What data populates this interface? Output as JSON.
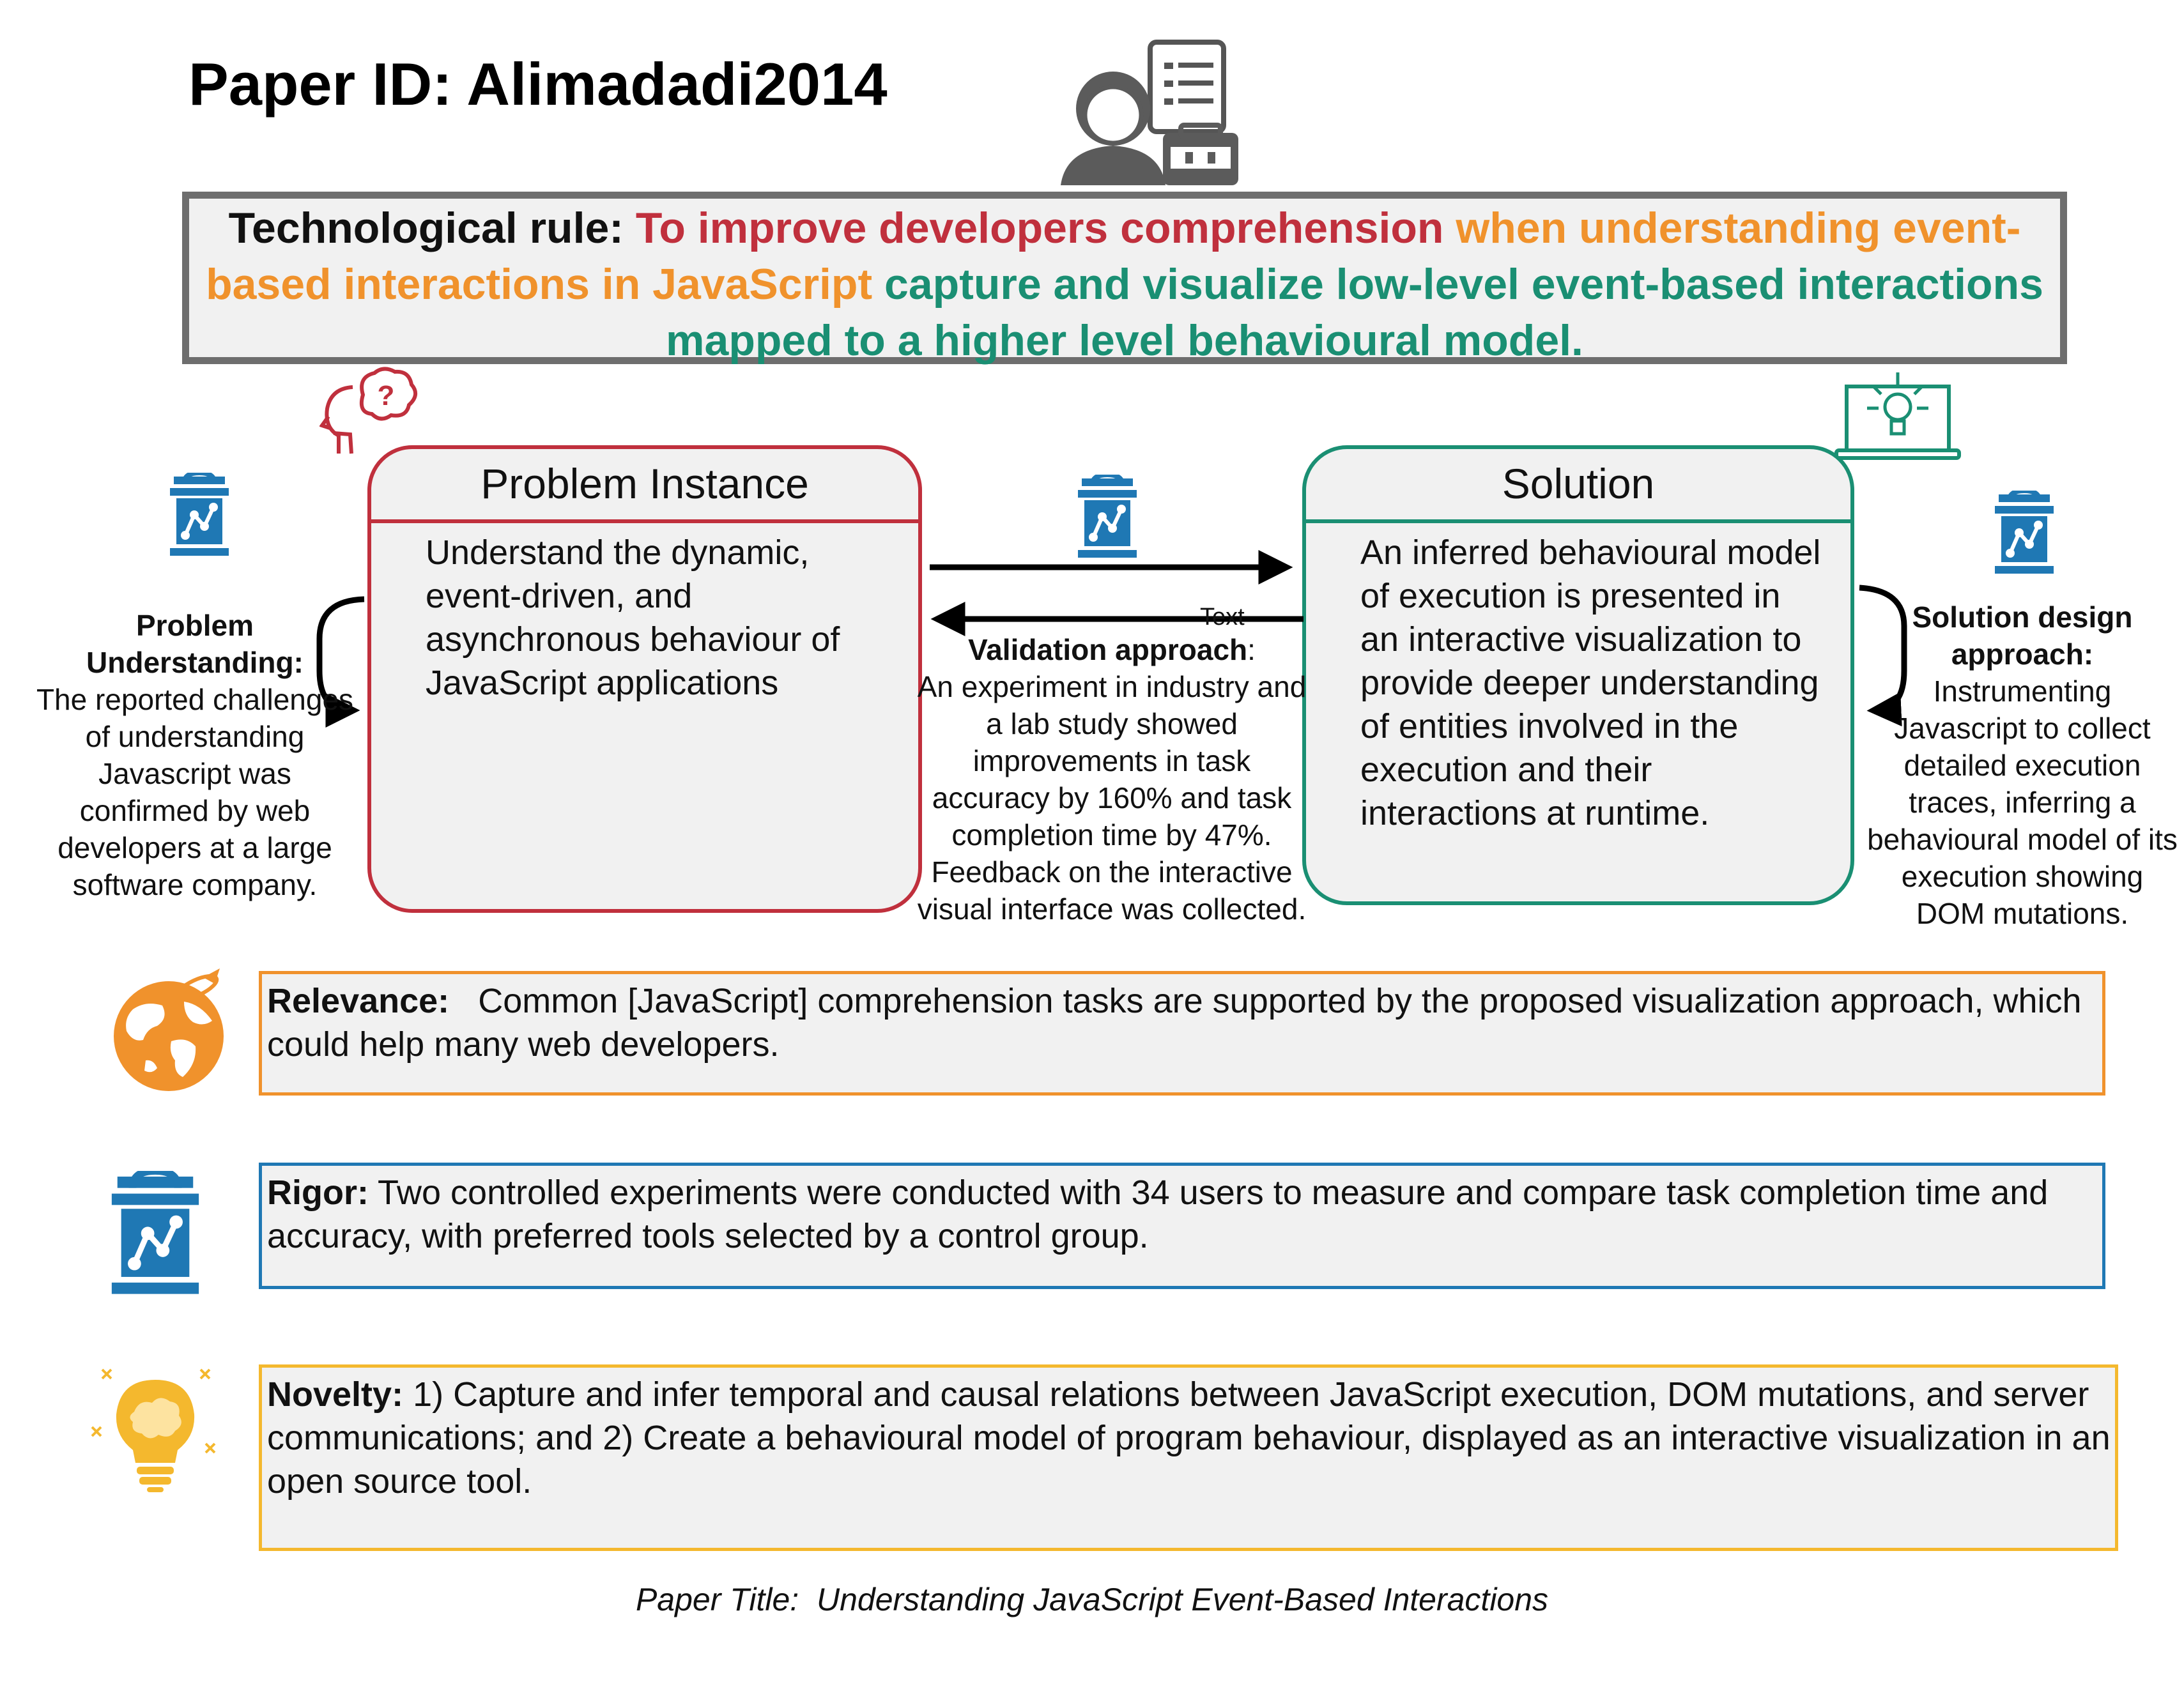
{
  "header": {
    "title": "Paper ID: Alimadadi2014"
  },
  "rule": {
    "label": "Technological rule:",
    "goal": "To improve developers comprehension",
    "context": "when understanding event-based interactions in JavaScript",
    "intervention": "capture and visualize low-level event-based interactions mapped to a higher level behavioural model."
  },
  "problem": {
    "title": "Problem Instance",
    "text": "Understand the dynamic, event-driven, and asynchronous behaviour of JavaScript applications"
  },
  "solution": {
    "title": "Solution",
    "text": "An inferred behavioural model of execution is presented in an interactive visualization to provide deeper understanding of entities involved in the execution and their interactions at runtime."
  },
  "problem_understanding": {
    "label": "Problem Understanding:",
    "text": "The reported challenges of understanding Javascript was confirmed  by web developers at a large software company."
  },
  "solution_design": {
    "label": "Solution design approach:",
    "text": "Instrumenting Javascript to collect detailed execution traces, inferring a behavioural model of its execution showing DOM mutations."
  },
  "validation": {
    "placeholder": "Text",
    "label": "Validation approach",
    "text": "An experiment in industry and a lab study showed improvements in task accuracy by 160%  and task completion time by 47%. Feedback on the interactive visual interface was collected."
  },
  "relevance": {
    "label": "Relevance:",
    "text": "Common [JavaScript] comprehension tasks are supported by the proposed visualization approach, which could help many web developers."
  },
  "rigor": {
    "label": "Rigor:",
    "text": "Two controlled experiments were conducted with 34 users to measure and compare task completion time and accuracy, with preferred tools selected by a control group."
  },
  "novelty": {
    "label": "Novelty:",
    "text": "1) Capture and infer temporal and causal relations between JavaScript execution, DOM mutations, and server communications; and 2) Create a behavioural model of program behaviour, displayed as an interactive visualization in an open source tool."
  },
  "footer": {
    "label": "Paper Title:",
    "title": "Understanding JavaScript Event-Based Interactions"
  },
  "colors": {
    "red": "#c0303d",
    "orange": "#f0922c",
    "green": "#1a8f73",
    "blue": "#1f78b4",
    "yellow": "#f4b82e",
    "gray": "#6e6e6e"
  },
  "icons": [
    "researcher-icon",
    "head-question-icon",
    "laptop-bulb-icon",
    "lab-flask-icon",
    "globe-icon",
    "brain-bulb-icon"
  ]
}
